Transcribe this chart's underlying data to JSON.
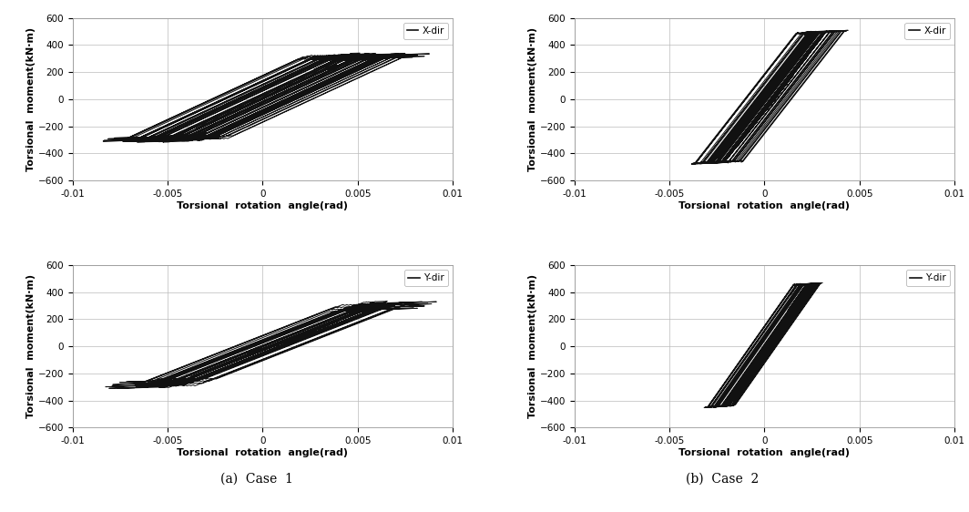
{
  "xlim": [
    -0.01,
    0.01
  ],
  "ylim": [
    -600,
    600
  ],
  "xticks": [
    -0.01,
    -0.005,
    0,
    0.005,
    0.01
  ],
  "yticks": [
    -600,
    -400,
    -200,
    0,
    200,
    400,
    600
  ],
  "xlabel": "Torsional  rotation  angle(rad)",
  "ylabel": "Torsional  moment(kN·m)",
  "legend_labels": [
    "X-dir",
    "Y-dir"
  ],
  "captions": [
    "(a)  Case  1",
    "(b)  Case  2"
  ],
  "line_color": "#111111",
  "line_width": 0.7,
  "background_color": "#ffffff",
  "grid_color": "#bbbbbb",
  "label_fontsize": 8,
  "tick_fontsize": 7.5,
  "legend_fontsize": 7.5,
  "caption_fontsize": 10
}
